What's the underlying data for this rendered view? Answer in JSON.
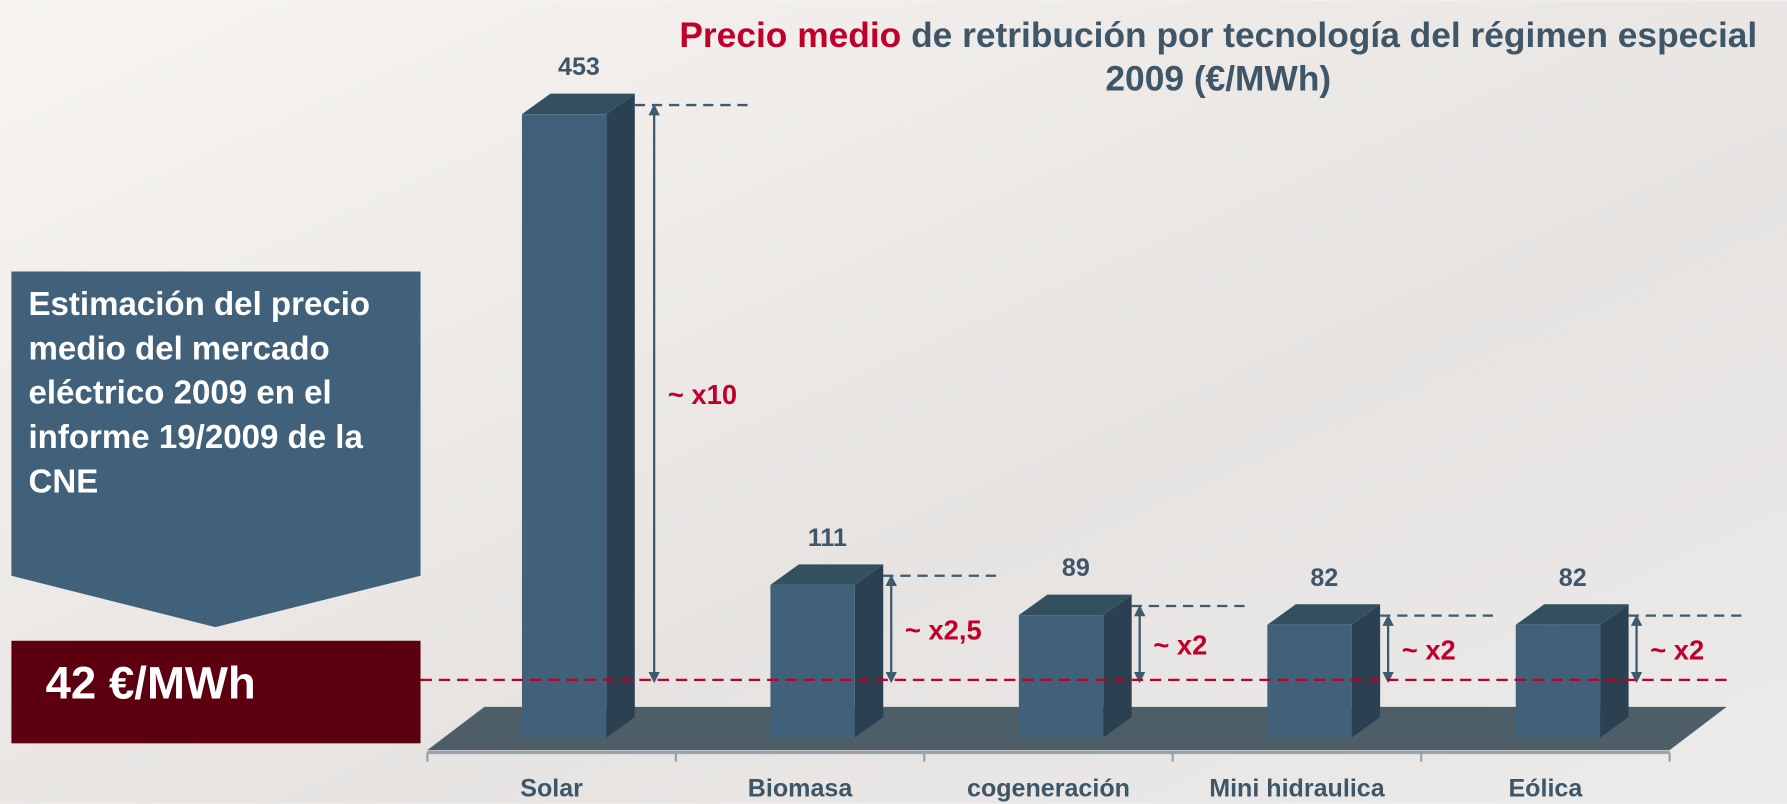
{
  "chart_data": {
    "type": "bar",
    "title_highlight": "Precio medio",
    "title": "de retribución por tecnología del régimen especial 2009 (€/MWh)",
    "categories": [
      "Solar",
      "Biomasa",
      "cogeneración",
      "Mini hidraulica",
      "Eólica"
    ],
    "values": [
      453,
      111,
      89,
      82,
      82
    ],
    "color": "#41617a",
    "annotations": [
      "~ x10",
      "~ x2,5",
      "~ x2",
      "~ x2",
      "~ x2"
    ],
    "reference": {
      "value": 42,
      "label": "42 €/MWh",
      "description": "Estimación del precio medio del mercado eléctrico 2009 en el informe 19/2009 de la CNE"
    }
  }
}
